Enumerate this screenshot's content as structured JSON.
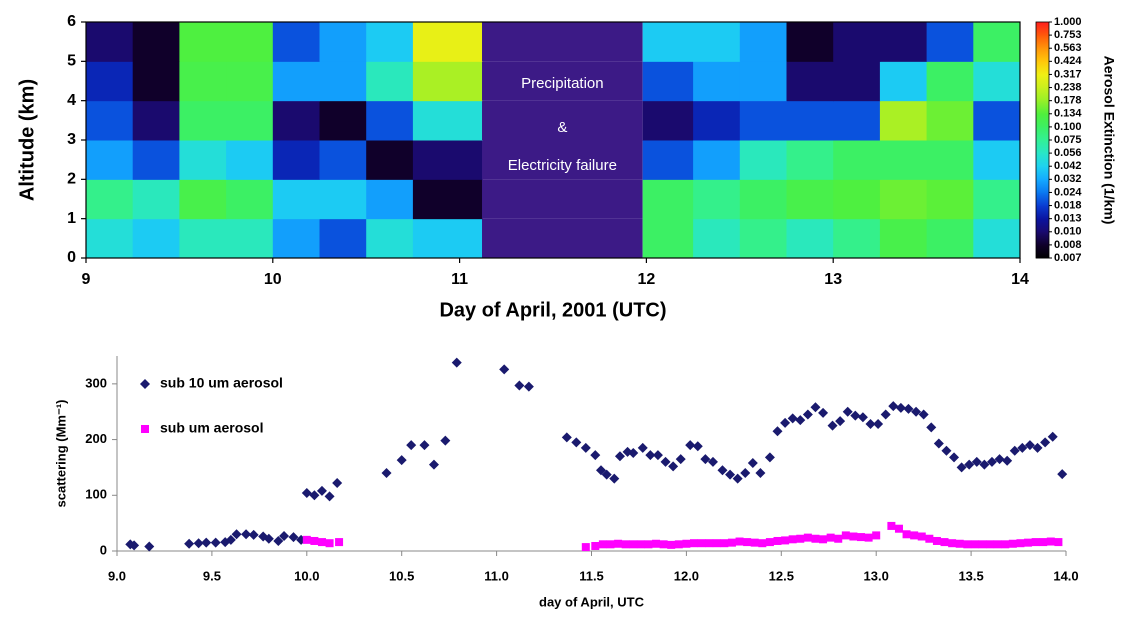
{
  "chart_data": [
    {
      "type": "heatmap",
      "ylabel": "Altitude (km)",
      "xlabel": "Day of April, 2001 (UTC)",
      "annotations": [
        "Precipitation",
        "&",
        "Electricity failure"
      ],
      "colorbar_label": "Aerosol Extinction  (1/km)",
      "xlim": [
        9,
        14
      ],
      "xticks": [
        9,
        10,
        11,
        12,
        13,
        14
      ],
      "ylim": [
        0,
        6
      ],
      "yticks": [
        0,
        1,
        2,
        3,
        4,
        5,
        6
      ],
      "x_edges": [
        9,
        9.25,
        9.5,
        9.75,
        10,
        10.25,
        10.5,
        10.75,
        11.12,
        11.98,
        12.25,
        12.5,
        12.75,
        13,
        13.25,
        13.5,
        13.75,
        14
      ],
      "y_edges": [
        0,
        1,
        2,
        3,
        4,
        5,
        6
      ],
      "z": [
        [
          0.05,
          0.04,
          0.06,
          0.06,
          0.03,
          0.02,
          0.05,
          0.04,
          null,
          0.1,
          0.06,
          0.08,
          0.06,
          0.08,
          0.12,
          0.1,
          0.05
        ],
        [
          0.08,
          0.06,
          0.12,
          0.1,
          0.04,
          0.04,
          0.03,
          0.008,
          null,
          0.1,
          0.08,
          0.1,
          0.12,
          0.13,
          0.15,
          0.14,
          0.08
        ],
        [
          0.03,
          0.02,
          0.05,
          0.04,
          0.015,
          0.02,
          0.008,
          0.01,
          null,
          0.02,
          0.03,
          0.06,
          0.08,
          0.1,
          0.1,
          0.1,
          0.04
        ],
        [
          0.02,
          0.01,
          0.1,
          0.1,
          0.01,
          0.008,
          0.02,
          0.05,
          null,
          0.01,
          0.015,
          0.02,
          0.02,
          0.02,
          0.2,
          0.15,
          0.02
        ],
        [
          0.015,
          0.008,
          0.12,
          0.12,
          0.03,
          0.03,
          0.06,
          0.2,
          null,
          0.02,
          0.03,
          0.03,
          0.01,
          0.01,
          0.04,
          0.1,
          0.05
        ],
        [
          0.01,
          0.008,
          0.13,
          0.13,
          0.02,
          0.03,
          0.04,
          0.3,
          null,
          0.04,
          0.04,
          0.03,
          0.008,
          0.01,
          0.01,
          0.02,
          0.1
        ]
      ],
      "zticks": [
        0.007,
        0.008,
        {
          "value": 0.01,
          "label": "0.010"
        },
        0.013,
        0.018,
        0.024,
        0.032,
        0.042,
        0.056,
        0.075,
        {
          "value": 0.1,
          "label": "0.100"
        },
        0.134,
        0.178,
        0.238,
        0.317,
        0.424,
        0.563,
        0.753,
        {
          "value": 1,
          "label": "1.000"
        }
      ],
      "colors": [
        "#000000",
        "#10002a",
        "#1a0a6e",
        "#0a14a0",
        "#0a3cd2",
        "#0a78f0",
        "#14aaff",
        "#1ed2f0",
        "#28e6c8",
        "#32f096",
        "#3cf064",
        "#50f03c",
        "#96f028",
        "#c8f01e",
        "#f0f014",
        "#ffc80a",
        "#ff960a",
        "#ff5a0a",
        "#ff1e1e"
      ],
      "gap_color": "#3c1a86"
    },
    {
      "type": "scatter",
      "ylabel": "scattering  (Mm⁻¹)",
      "xlabel": "day of April,  UTC",
      "xlim": [
        9,
        14
      ],
      "xticks": [
        {
          "value": 9,
          "label": "9.0"
        },
        9.5,
        {
          "value": 10,
          "label": "10.0"
        },
        10.5,
        {
          "value": 11,
          "label": "11.0"
        },
        11.5,
        {
          "value": 12,
          "label": "12.0"
        },
        12.5,
        {
          "value": 13,
          "label": "13.0"
        },
        13.5,
        {
          "value": 14,
          "label": "14.0"
        }
      ],
      "ylim": [
        0,
        350
      ],
      "yticks": [
        0,
        100,
        200,
        300
      ],
      "legend": "upper left",
      "series": [
        {
          "name": "sub 10 um aerosol",
          "color": "#1a1a6e",
          "marker": "diamond",
          "x": [
            9.07,
            9.09,
            9.17,
            9.38,
            9.43,
            9.47,
            9.52,
            9.57,
            9.6,
            9.63,
            9.68,
            9.72,
            9.77,
            9.8,
            9.85,
            9.88,
            9.93,
            9.97,
            10.0,
            10.04,
            10.08,
            10.12,
            10.16,
            10.42,
            10.5,
            10.55,
            10.62,
            10.67,
            10.73,
            10.79,
            11.04,
            11.12,
            11.17,
            11.37,
            11.42,
            11.47,
            11.52,
            11.55,
            11.58,
            11.62,
            11.65,
            11.69,
            11.72,
            11.77,
            11.81,
            11.85,
            11.89,
            11.93,
            11.97,
            12.02,
            12.06,
            12.1,
            12.14,
            12.19,
            12.23,
            12.27,
            12.31,
            12.35,
            12.39,
            12.44,
            12.48,
            12.52,
            12.56,
            12.6,
            12.64,
            12.68,
            12.72,
            12.77,
            12.81,
            12.85,
            12.89,
            12.93,
            12.97,
            13.01,
            13.05,
            13.09,
            13.13,
            13.17,
            13.21,
            13.25,
            13.29,
            13.33,
            13.37,
            13.41,
            13.45,
            13.49,
            13.53,
            13.57,
            13.61,
            13.65,
            13.69,
            13.73,
            13.77,
            13.81,
            13.85,
            13.89,
            13.93,
            13.98
          ],
          "values": [
            12,
            10,
            8,
            13,
            14,
            15,
            15,
            16,
            20,
            30,
            30,
            29,
            26,
            22,
            18,
            27,
            25,
            20,
            104,
            100,
            108,
            98,
            122,
            140,
            163,
            190,
            190,
            155,
            198,
            338,
            326,
            297,
            295,
            204,
            195,
            185,
            172,
            145,
            137,
            130,
            170,
            178,
            176,
            185,
            172,
            172,
            160,
            152,
            165,
            190,
            188,
            165,
            160,
            145,
            137,
            130,
            140,
            158,
            140,
            168,
            215,
            230,
            238,
            235,
            245,
            258,
            248,
            225,
            233,
            250,
            243,
            240,
            228,
            228,
            245,
            260,
            257,
            255,
            250,
            245,
            222,
            193,
            180,
            168,
            150,
            155,
            160,
            155,
            160,
            165,
            162,
            180,
            185,
            190,
            185,
            195,
            205,
            138
          ]
        },
        {
          "name": "sub um aerosol",
          "color": "#ff00ff",
          "marker": "square",
          "x": [
            10.0,
            10.04,
            10.08,
            10.12,
            10.17,
            11.47,
            11.52,
            11.56,
            11.6,
            11.64,
            11.68,
            11.72,
            11.76,
            11.8,
            11.84,
            11.88,
            11.92,
            11.96,
            12.0,
            12.04,
            12.08,
            12.12,
            12.16,
            12.2,
            12.24,
            12.28,
            12.32,
            12.36,
            12.4,
            12.44,
            12.48,
            12.52,
            12.56,
            12.6,
            12.64,
            12.68,
            12.72,
            12.76,
            12.8,
            12.84,
            12.88,
            12.92,
            12.96,
            13.0,
            13.08,
            13.12,
            13.16,
            13.2,
            13.24,
            13.28,
            13.32,
            13.36,
            13.4,
            13.44,
            13.48,
            13.52,
            13.56,
            13.6,
            13.64,
            13.68,
            13.72,
            13.76,
            13.8,
            13.84,
            13.88,
            13.92,
            13.96
          ],
          "values": [
            20,
            18,
            16,
            14,
            16,
            7,
            9,
            12,
            12,
            13,
            12,
            12,
            12,
            12,
            13,
            12,
            11,
            12,
            13,
            14,
            14,
            14,
            14,
            14,
            15,
            17,
            16,
            15,
            14,
            16,
            18,
            19,
            21,
            22,
            24,
            22,
            21,
            24,
            22,
            28,
            26,
            25,
            24,
            28,
            45,
            40,
            30,
            28,
            26,
            22,
            18,
            16,
            14,
            13,
            12,
            12,
            12,
            12,
            12,
            12,
            13,
            14,
            15,
            16,
            16,
            17,
            16
          ]
        }
      ]
    }
  ]
}
